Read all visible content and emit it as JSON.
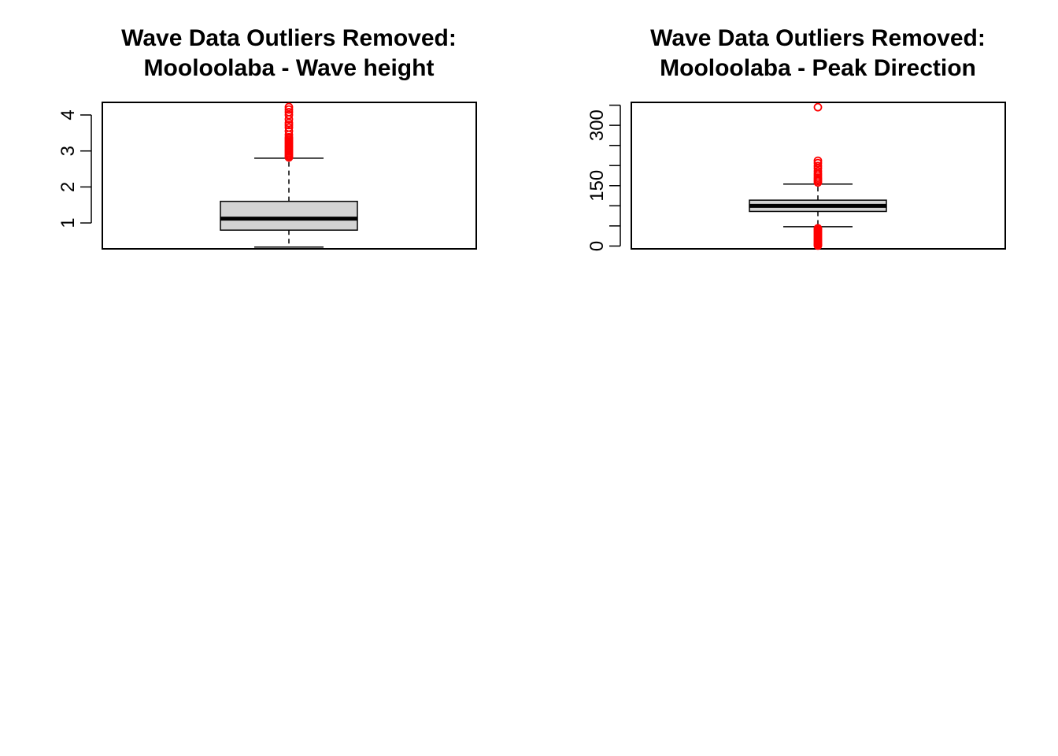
{
  "chart_data": [
    {
      "type": "boxplot",
      "title_line1": "Wave Data Outliers Removed:",
      "title_line2": "Mooloolaba - Wave height",
      "ylim": [
        0.28,
        4.35
      ],
      "y_ticks": [
        1,
        2,
        3,
        4
      ],
      "y_tick_labels": [
        "1",
        "2",
        "3",
        "4"
      ],
      "box": {
        "whisker_low": 0.33,
        "q1": 0.8,
        "median": 1.12,
        "q3": 1.6,
        "whisker_high": 2.8
      },
      "outliers": [
        2.82,
        2.86,
        2.9,
        2.94,
        2.98,
        3.02,
        3.06,
        3.1,
        3.14,
        3.18,
        3.22,
        3.26,
        3.3,
        3.34,
        3.38,
        3.45,
        3.55,
        3.65,
        3.72,
        3.78,
        3.88,
        4.0,
        4.08,
        4.15,
        4.22
      ],
      "colors": {
        "box_fill": "#d3d3d3",
        "outlier": "#ff0000",
        "line": "#000000"
      }
    },
    {
      "type": "boxplot",
      "title_line1": "Wave Data Outliers Removed:",
      "title_line2": "Mooloolaba - Peak Direction",
      "ylim": [
        -7,
        357
      ],
      "y_ticks": [
        0,
        50,
        100,
        150,
        200,
        250,
        300,
        350
      ],
      "y_tick_labels": [
        "0",
        "",
        "",
        "150",
        "",
        "",
        "300",
        ""
      ],
      "box": {
        "whisker_low": 48,
        "q1": 86,
        "median": 100,
        "q3": 114,
        "whisker_high": 154
      },
      "outliers": [
        1,
        3,
        5,
        8,
        11,
        14,
        17,
        20,
        23,
        26,
        29,
        32,
        35,
        38,
        41,
        44,
        158,
        162,
        166,
        170,
        175,
        180,
        186,
        193,
        199,
        206,
        212,
        345
      ],
      "colors": {
        "box_fill": "#d3d3d3",
        "outlier": "#ff0000",
        "line": "#000000"
      }
    }
  ]
}
